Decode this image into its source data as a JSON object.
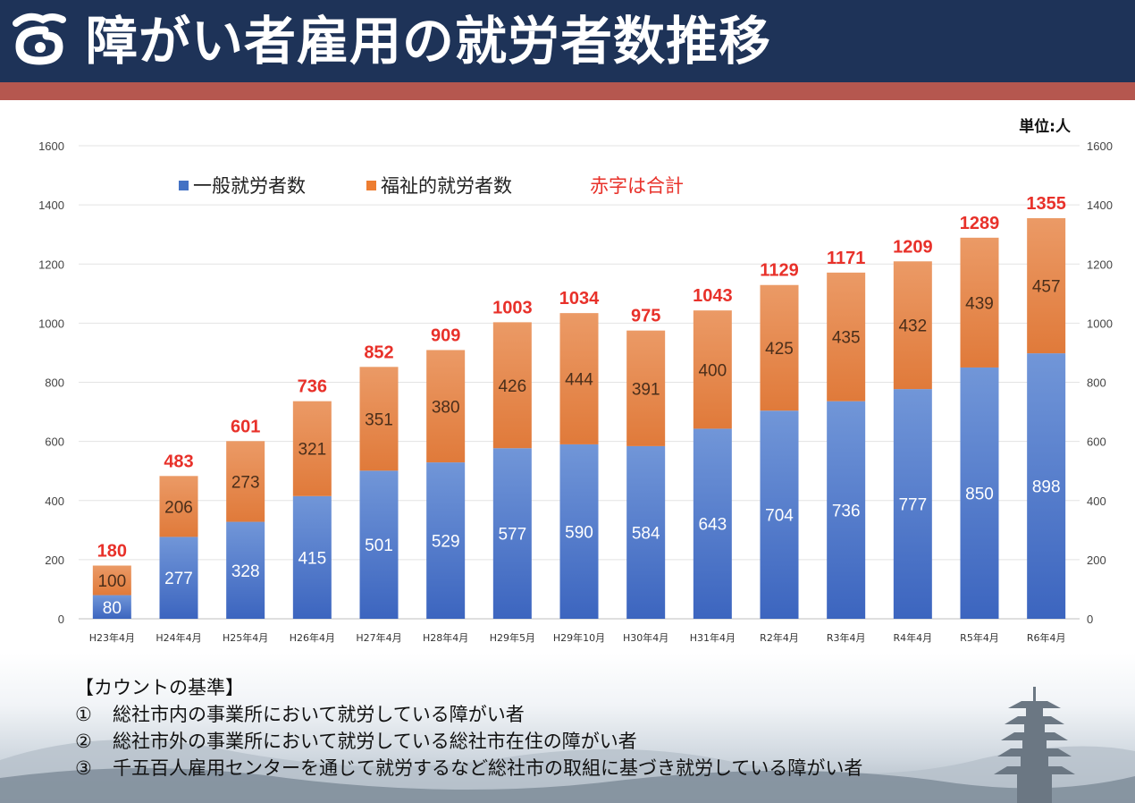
{
  "header": {
    "title": "障がい者雇用の就労者数推移",
    "logo_icon": "city-emblem-icon",
    "bg_color": "#1e3358",
    "stripe_color": "#b5574f"
  },
  "unit_label": "単位:人",
  "chart_data": {
    "type": "bar",
    "stacked": true,
    "categories": [
      "H23年4月",
      "H24年4月",
      "H25年4月",
      "H26年4月",
      "H27年4月",
      "H28年4月",
      "H29年5月",
      "H29年10月",
      "H30年4月",
      "H31年4月",
      "R2年4月",
      "R3年4月",
      "R4年4月",
      "R5年4月",
      "R6年4月"
    ],
    "series": [
      {
        "name": "一般就労者数",
        "color": "#4472c4",
        "values": [
          80,
          277,
          328,
          415,
          501,
          529,
          577,
          590,
          584,
          643,
          704,
          736,
          777,
          850,
          898
        ]
      },
      {
        "name": "福祉的就労者数",
        "color": "#ed7d31",
        "values": [
          100,
          206,
          273,
          321,
          351,
          380,
          426,
          444,
          391,
          400,
          425,
          435,
          432,
          439,
          457
        ]
      }
    ],
    "totals": [
      180,
      483,
      601,
      736,
      852,
      909,
      1003,
      1034,
      975,
      1043,
      1129,
      1171,
      1209,
      1289,
      1355
    ],
    "totals_color": "#e8312a",
    "totals_note": "赤字は合計",
    "ylim": [
      0,
      1600
    ],
    "yticks": [
      0,
      200,
      400,
      600,
      800,
      1000,
      1200,
      1400,
      1600
    ],
    "grid": true,
    "legend_position": "top-left"
  },
  "criteria": {
    "heading": "【カウントの基準】",
    "items": [
      {
        "num": "①",
        "text": "総社市内の事業所において就労している障がい者"
      },
      {
        "num": "②",
        "text": "総社市外の事業所において就労している総社市在住の障がい者"
      },
      {
        "num": "③",
        "text": "千五百人雇用センターを通じて就労するなど総社市の取組に基づき就労している障がい者"
      }
    ]
  }
}
